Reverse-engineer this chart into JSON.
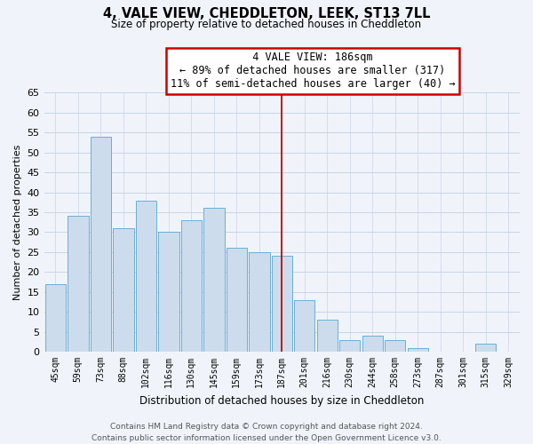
{
  "title": "4, VALE VIEW, CHEDDLETON, LEEK, ST13 7LL",
  "subtitle": "Size of property relative to detached houses in Cheddleton",
  "xlabel": "Distribution of detached houses by size in Cheddleton",
  "ylabel": "Number of detached properties",
  "categories": [
    "45sqm",
    "59sqm",
    "73sqm",
    "88sqm",
    "102sqm",
    "116sqm",
    "130sqm",
    "145sqm",
    "159sqm",
    "173sqm",
    "187sqm",
    "201sqm",
    "216sqm",
    "230sqm",
    "244sqm",
    "258sqm",
    "273sqm",
    "287sqm",
    "301sqm",
    "315sqm",
    "329sqm"
  ],
  "values": [
    17,
    34,
    54,
    31,
    38,
    30,
    33,
    36,
    26,
    25,
    24,
    13,
    8,
    3,
    4,
    3,
    1,
    0,
    0,
    2,
    0
  ],
  "bar_color": "#ccdcec",
  "bar_edge_color": "#6baed6",
  "vline_index": 10,
  "vline_color": "#cc0000",
  "ylim": [
    0,
    65
  ],
  "yticks": [
    0,
    5,
    10,
    15,
    20,
    25,
    30,
    35,
    40,
    45,
    50,
    55,
    60,
    65
  ],
  "annotation_title": "4 VALE VIEW: 186sqm",
  "annotation_line1": "← 89% of detached houses are smaller (317)",
  "annotation_line2": "11% of semi-detached houses are larger (40) →",
  "annotation_box_color": "#ffffff",
  "annotation_box_edge": "#cc0000",
  "footer1": "Contains HM Land Registry data © Crown copyright and database right 2024.",
  "footer2": "Contains public sector information licensed under the Open Government Licence v3.0.",
  "bg_color": "#f0f4fa",
  "grid_color": "#c8d4e4"
}
